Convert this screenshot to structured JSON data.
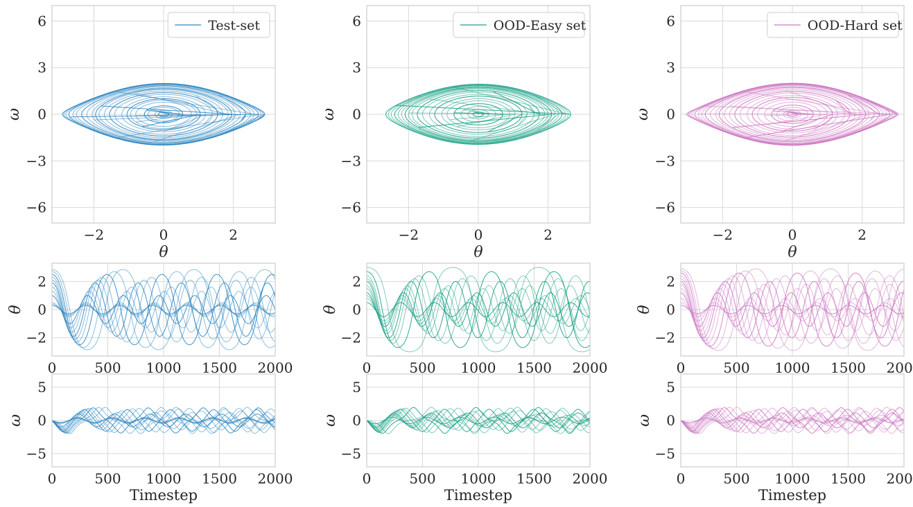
{
  "colors": {
    "test": "#2e86c1",
    "ood_easy": "#17a085",
    "ood_hard": "#cc79c2",
    "grid": "#d9d9d9",
    "spine": "#cccccc"
  },
  "chart_data": [
    {
      "id": "phase-test",
      "type": "line",
      "panel": "phase",
      "color_key": "test",
      "legend": "Test-set",
      "xlabel": "θ",
      "ylabel": "ω",
      "xlim": [
        -3.2,
        3.2
      ],
      "ylim": [
        -7.0,
        7.0
      ],
      "xticks": [
        -2,
        0,
        2
      ],
      "xticklabels": [
        "−2",
        "0",
        "2"
      ],
      "yticks": [
        -6,
        -3,
        0,
        3,
        6
      ],
      "yticklabels": [
        "−6",
        "−3",
        "0",
        "3",
        "6"
      ],
      "amplitudes": [
        0.15,
        0.25,
        0.45,
        0.55,
        0.8,
        0.95,
        1.05,
        1.2,
        1.4,
        1.55,
        1.7,
        1.85,
        1.95,
        2.05,
        2.2,
        2.35,
        2.5,
        2.6,
        2.72,
        2.8,
        2.86,
        2.9
      ],
      "grid": true
    },
    {
      "id": "phase-easy",
      "type": "line",
      "panel": "phase",
      "color_key": "ood_easy",
      "legend": "OOD-Easy set",
      "xlabel": "θ",
      "ylabel": "ω",
      "xlim": [
        -3.2,
        3.2
      ],
      "ylim": [
        -7.0,
        7.0
      ],
      "xticks": [
        -2,
        0,
        2
      ],
      "xticklabels": [
        "−2",
        "0",
        "2"
      ],
      "yticks": [
        -6,
        -3,
        0,
        3,
        6
      ],
      "yticklabels": [
        "−6",
        "−3",
        "0",
        "3",
        "6"
      ],
      "amplitudes": [
        0.15,
        0.3,
        0.5,
        0.7,
        0.9,
        1.05,
        1.25,
        1.4,
        1.6,
        1.75,
        1.9,
        2.0,
        2.1,
        2.2,
        2.3,
        2.4,
        2.5,
        2.58,
        2.65
      ],
      "grid": true
    },
    {
      "id": "phase-hard",
      "type": "line",
      "panel": "phase",
      "color_key": "ood_hard",
      "legend": "OOD-Hard set",
      "xlabel": "θ",
      "ylabel": "ω",
      "xlim": [
        -3.2,
        3.2
      ],
      "ylim": [
        -7.0,
        7.0
      ],
      "xticks": [
        -2,
        0,
        2
      ],
      "xticklabels": [
        "−2",
        "0",
        "2"
      ],
      "yticks": [
        -6,
        -3,
        0,
        3,
        6
      ],
      "yticklabels": [
        "−6",
        "−3",
        "0",
        "3",
        "6"
      ],
      "amplitudes": [
        0.15,
        0.25,
        0.45,
        0.6,
        0.8,
        1.0,
        1.15,
        1.3,
        1.5,
        1.65,
        1.8,
        1.95,
        2.1,
        2.2,
        2.35,
        2.5,
        2.6,
        2.7,
        2.8,
        2.88,
        2.95,
        3.0,
        3.05
      ],
      "grid": true
    },
    {
      "id": "theta-test",
      "type": "line",
      "panel": "theta",
      "color_key": "test",
      "xlabel": "",
      "ylabel": "θ",
      "xlim": [
        0,
        2000
      ],
      "ylim": [
        -3.3,
        3.3
      ],
      "xticks": [
        0,
        500,
        1000,
        1500,
        2000
      ],
      "xticklabels": [
        "0",
        "500",
        "1000",
        "1500",
        "2000"
      ],
      "yticks": [
        -2,
        0,
        2
      ],
      "yticklabels": [
        "−2",
        "0",
        "2"
      ],
      "amplitudes": [
        0.3,
        0.4,
        0.5,
        1.0,
        1.3,
        1.6,
        1.9,
        2.1,
        2.3,
        2.5,
        2.7,
        2.85
      ],
      "grid": true
    },
    {
      "id": "theta-easy",
      "type": "line",
      "panel": "theta",
      "color_key": "ood_easy",
      "xlabel": "",
      "ylabel": "θ",
      "xlim": [
        0,
        2000
      ],
      "ylim": [
        -3.3,
        3.3
      ],
      "xticks": [
        0,
        500,
        1000,
        1500,
        2000
      ],
      "xticklabels": [
        "0",
        "500",
        "1000",
        "1500",
        "2000"
      ],
      "yticks": [
        -2,
        0,
        2
      ],
      "yticklabels": [
        "−2",
        "0",
        "2"
      ],
      "amplitudes": [
        0.5,
        0.8,
        1.0,
        1.2,
        1.5,
        1.7,
        2.0,
        2.2,
        2.4,
        2.7,
        3.0
      ],
      "grid": true
    },
    {
      "id": "theta-hard",
      "type": "line",
      "panel": "theta",
      "color_key": "ood_hard",
      "xlabel": "",
      "ylabel": "θ",
      "xlim": [
        0,
        2000
      ],
      "ylim": [
        -3.3,
        3.3
      ],
      "xticks": [
        0,
        500,
        1000,
        1500,
        2000
      ],
      "xticklabels": [
        "0",
        "500",
        "1000",
        "1500",
        "2000"
      ],
      "yticks": [
        -2,
        0,
        2
      ],
      "yticklabels": [
        "−2",
        "0",
        "2"
      ],
      "amplitudes": [
        0.3,
        0.5,
        0.8,
        1.2,
        1.5,
        1.8,
        2.0,
        2.2,
        2.4,
        2.6,
        2.75,
        2.9
      ],
      "grid": true
    },
    {
      "id": "omega-test",
      "type": "line",
      "panel": "omega",
      "color_key": "test",
      "xlabel": "Timestep",
      "ylabel": "ω",
      "xlim": [
        0,
        2000
      ],
      "ylim": [
        -7.0,
        7.0
      ],
      "xticks": [
        0,
        500,
        1000,
        1500,
        2000
      ],
      "xticklabels": [
        "0",
        "500",
        "1000",
        "1500",
        "2000"
      ],
      "yticks": [
        -5,
        0,
        5
      ],
      "yticklabels": [
        "−5",
        "0",
        "5"
      ],
      "amplitudes": [
        0.3,
        0.4,
        0.5,
        1.0,
        1.3,
        1.6,
        1.9,
        2.1,
        2.3,
        2.5,
        2.7,
        2.85
      ],
      "grid": true
    },
    {
      "id": "omega-easy",
      "type": "line",
      "panel": "omega",
      "color_key": "ood_easy",
      "xlabel": "Timestep",
      "ylabel": "ω",
      "xlim": [
        0,
        2000
      ],
      "ylim": [
        -7.0,
        7.0
      ],
      "xticks": [
        0,
        500,
        1000,
        1500,
        2000
      ],
      "xticklabels": [
        "0",
        "500",
        "1000",
        "1500",
        "2000"
      ],
      "yticks": [
        -5,
        0,
        5
      ],
      "yticklabels": [
        "−5",
        "0",
        "5"
      ],
      "amplitudes": [
        0.5,
        0.8,
        1.0,
        1.2,
        1.5,
        1.7,
        2.0,
        2.2,
        2.4,
        2.7,
        3.0
      ],
      "grid": true
    },
    {
      "id": "omega-hard",
      "type": "line",
      "panel": "omega",
      "color_key": "ood_hard",
      "xlabel": "Timestep",
      "ylabel": "ω",
      "xlim": [
        0,
        2000
      ],
      "ylim": [
        -7.0,
        7.0
      ],
      "xticks": [
        0,
        500,
        1000,
        1500,
        2000
      ],
      "xticklabels": [
        "0",
        "500",
        "1000",
        "1500",
        "2000"
      ],
      "yticks": [
        -5,
        0,
        5
      ],
      "yticklabels": [
        "−5",
        "0",
        "5"
      ],
      "amplitudes": [
        0.3,
        0.5,
        0.8,
        1.2,
        1.5,
        1.8,
        2.0,
        2.2,
        2.4,
        2.6,
        2.75,
        2.9
      ],
      "grid": true
    }
  ]
}
